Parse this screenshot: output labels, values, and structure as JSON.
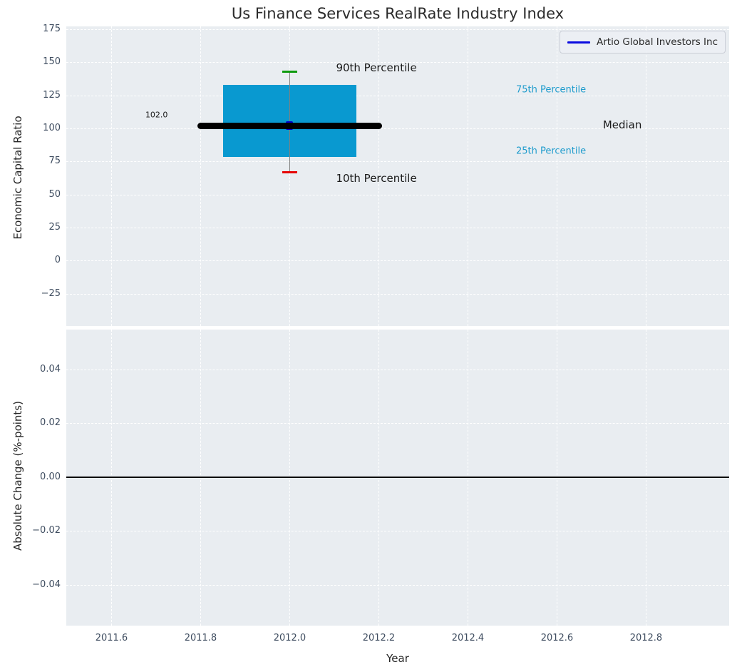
{
  "legend": {
    "label": "Artio Global Investors Inc",
    "line_color": "#0b0be0"
  },
  "colors": {
    "axes_bg": "#e9edf1",
    "grid": "#ffffff",
    "tick": "#3f4d60",
    "text": "#262626",
    "box_fill": "#0999d0",
    "percentile_text": "#1f9ccd",
    "whisker": "#808080",
    "cap_top": "#0d9a0d",
    "cap_bottom": "#e60000",
    "median_line": "#000000",
    "marker": "#0000cc",
    "zero_line": "#000000"
  },
  "chart_data": [
    {
      "type": "boxplot",
      "title": "Us Finance Services RealRate Industry Index",
      "ylabel": "Economic Capital Ratio",
      "grid": true,
      "legend_position": "upper right",
      "xlim": [
        2011.4985,
        2012.9865
      ],
      "ylim": [
        -49.4,
        177.2
      ],
      "yticks": [
        [
          175,
          "175"
        ],
        [
          150,
          "150"
        ],
        [
          125,
          "125"
        ],
        [
          100,
          "100"
        ],
        [
          75,
          "75"
        ],
        [
          50,
          "50"
        ],
        [
          25,
          "25"
        ],
        [
          0,
          "0"
        ],
        [
          -25,
          "−25"
        ]
      ],
      "xticks": [
        [
          2011.6,
          "2011.6"
        ],
        [
          2011.8,
          "2011.8"
        ],
        [
          2012.0,
          "2012.0"
        ],
        [
          2012.2,
          "2012.2"
        ],
        [
          2012.4,
          "2012.4"
        ],
        [
          2012.6,
          "2012.6"
        ],
        [
          2012.8,
          "2012.8"
        ]
      ],
      "box": {
        "x": 2012.0,
        "x_left": 2011.85,
        "x_right": 2012.15,
        "p90": 142.8,
        "p75": 133.2,
        "median": 102.0,
        "p25": 78.4,
        "p10": 67.1,
        "median_span": [
          2011.8,
          2012.2
        ],
        "median_label": "102.0"
      },
      "series": [
        {
          "name": "Artio Global Investors Inc",
          "x": [
            2012.0
          ],
          "y": [
            102.0
          ]
        }
      ],
      "annotations": [
        {
          "text": "102.0",
          "x": 2011.676,
          "y": 110.5,
          "color": "#1a1a1a",
          "size": 11
        },
        {
          "text": "90th Percentile",
          "x": 2012.104,
          "y": 146.0,
          "color": "#1a1a1a",
          "size": 15
        },
        {
          "text": "10th Percentile",
          "x": 2012.104,
          "y": 62.1,
          "color": "#1a1a1a",
          "size": 15
        },
        {
          "text": "75th Percentile",
          "x": 2012.508,
          "y": 129.0,
          "color": "#1f9ccd",
          "size": 13
        },
        {
          "text": "25th Percentile",
          "x": 2012.508,
          "y": 82.6,
          "color": "#1f9ccd",
          "size": 13
        },
        {
          "text": "Median",
          "x": 2012.703,
          "y": 102.5,
          "color": "#1a1a1a",
          "size": 15
        }
      ]
    },
    {
      "type": "line",
      "ylabel": "Absolute Change (%-points)",
      "xlabel": "Year",
      "grid": true,
      "xlim": [
        2011.4985,
        2012.9865
      ],
      "ylim": [
        -0.0552,
        0.0547
      ],
      "yticks": [
        [
          0.04,
          "0.04"
        ],
        [
          0.02,
          "0.02"
        ],
        [
          0,
          "0.00"
        ],
        [
          -0.02,
          "−0.02"
        ],
        [
          -0.04,
          "−0.04"
        ]
      ],
      "xticks": [
        [
          2011.6,
          "2011.6"
        ],
        [
          2011.8,
          "2011.8"
        ],
        [
          2012.0,
          "2012.0"
        ],
        [
          2012.2,
          "2012.2"
        ],
        [
          2012.4,
          "2012.4"
        ],
        [
          2012.6,
          "2012.6"
        ],
        [
          2012.8,
          "2012.8"
        ]
      ],
      "zero_line": 0.0,
      "series": []
    }
  ]
}
